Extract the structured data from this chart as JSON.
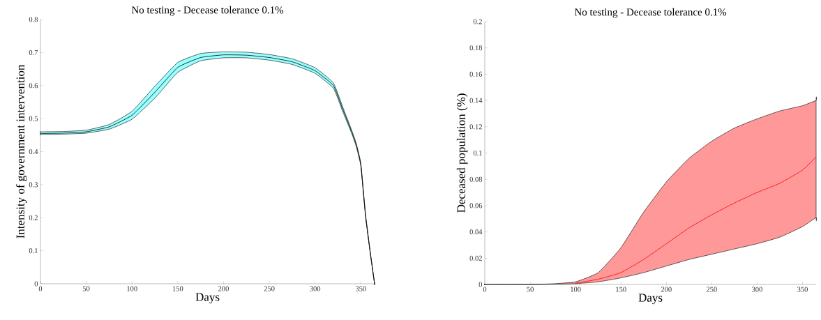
{
  "chart_data": [
    {
      "type": "line",
      "title": "No testing - Decease tolerance 0.1%",
      "xlabel": "Days",
      "ylabel": "Intensity of government intervention",
      "x": [
        0,
        25,
        50,
        75,
        100,
        125,
        150,
        175,
        200,
        225,
        250,
        275,
        300,
        320,
        330,
        340,
        345,
        350,
        355,
        360,
        365
      ],
      "series": [
        {
          "color": "#000000",
          "colors": [
            "#99ffff",
            "#99ffff",
            "#99ffff",
            "#99ffff",
            "#99ffff",
            "#99ffff",
            "#99ffff",
            "#99ffff",
            "#99ffff",
            "#99ffff",
            "#99ffff",
            "#99ffff",
            "#99ffff",
            "#99ffff",
            "#99ffff",
            "#99ffff",
            "#99ffff",
            "#99ffff",
            "#99ffff",
            "#99ffff",
            "#99ffff"
          ],
          "values": [
            0.455,
            0.456,
            0.46,
            0.475,
            0.51,
            0.58,
            0.655,
            0.685,
            0.693,
            0.692,
            0.685,
            0.672,
            0.645,
            0.6,
            0.53,
            0.46,
            0.42,
            0.36,
            0.21,
            0.1,
            0.0
          ],
          "lower": [
            0.452,
            0.453,
            0.456,
            0.468,
            0.498,
            0.562,
            0.64,
            0.675,
            0.684,
            0.684,
            0.677,
            0.664,
            0.637,
            0.592,
            0.523,
            0.455,
            0.415,
            0.356,
            0.207,
            0.098,
            0.0
          ],
          "upper": [
            0.46,
            0.461,
            0.465,
            0.482,
            0.522,
            0.598,
            0.67,
            0.697,
            0.702,
            0.701,
            0.694,
            0.681,
            0.654,
            0.608,
            0.537,
            0.465,
            0.425,
            0.364,
            0.213,
            0.102,
            0.0
          ]
        }
      ],
      "xlim": [
        0,
        365
      ],
      "ylim": [
        0,
        0.8
      ],
      "xticks": [
        0,
        50,
        100,
        150,
        200,
        250,
        300,
        350
      ],
      "yticks": [
        0,
        0.1,
        0.2,
        0.3,
        0.4,
        0.5,
        0.6,
        0.7,
        0.8
      ],
      "grid": false
    },
    {
      "type": "line",
      "title": "No testing - Decease tolerance 0.1%",
      "xlabel": "Days",
      "ylabel": "Deceased population (%)",
      "x": [
        0,
        25,
        50,
        75,
        100,
        125,
        150,
        175,
        200,
        225,
        250,
        275,
        300,
        325,
        350,
        365
      ],
      "series": [
        {
          "color": "#ff0000",
          "colors": [
            "#ff9999",
            "#ff9999",
            "#ff9999",
            "#ff9999",
            "#ff9999",
            "#ff9999",
            "#ff9999",
            "#ff9999",
            "#ff9999",
            "#ff9999",
            "#ff9999",
            "#ff9999",
            "#ff9999",
            "#ff9999",
            "#ff9999",
            "#ff9999"
          ],
          "values": [
            null,
            null,
            null,
            null,
            0.001,
            0.004,
            0.009,
            0.019,
            0.031,
            0.043,
            0.053,
            0.062,
            0.07,
            0.077,
            0.087,
            0.097
          ],
          "lower": [
            0,
            0,
            0,
            0.0002,
            0.0006,
            0.002,
            0.005,
            0.009,
            0.014,
            0.019,
            0.023,
            0.027,
            0.031,
            0.036,
            0.044,
            0.051
          ],
          "upper": [
            0,
            0,
            0,
            0.0005,
            0.002,
            0.009,
            0.028,
            0.055,
            0.078,
            0.096,
            0.109,
            0.119,
            0.126,
            0.132,
            0.136,
            0.14
          ]
        }
      ],
      "xlim": [
        0,
        365
      ],
      "ylim": [
        0,
        0.2
      ],
      "xticks": [
        0,
        50,
        100,
        150,
        200,
        250,
        300,
        350
      ],
      "yticks": [
        0,
        0.02,
        0.04,
        0.06,
        0.08,
        0.1,
        0.12,
        0.14,
        0.16,
        0.18,
        0.2
      ],
      "grid": false
    }
  ]
}
